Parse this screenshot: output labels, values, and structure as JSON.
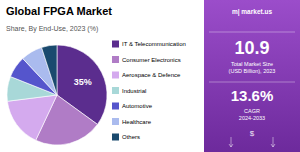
{
  "chart_data": {
    "type": "pie",
    "title": "Global FPGA Market",
    "subtitle": "Share, By End-Use, 2023 (%)",
    "categories": [
      "IT & Telecommunication",
      "Consumer Electronics",
      "Aerospace & Defence",
      "Industrial",
      "Automotive",
      "Healthcare",
      "Others"
    ],
    "values": [
      35,
      22,
      16,
      8,
      7,
      7,
      5
    ],
    "colors": [
      "#5b2d8e",
      "#b07cc6",
      "#d4aaee",
      "#a8d8d8",
      "#5555cc",
      "#aabbee",
      "#1a4a6e"
    ],
    "data_labels": true,
    "value_labels": [
      "35%",
      null,
      null,
      null,
      null,
      null,
      null
    ],
    "annotations": [
      "m| market.us",
      "10.9",
      "Total Market Size\n(USD Billion), 2023",
      "13.6%",
      "CAGR\n2024-2033",
      "$"
    ]
  }
}
